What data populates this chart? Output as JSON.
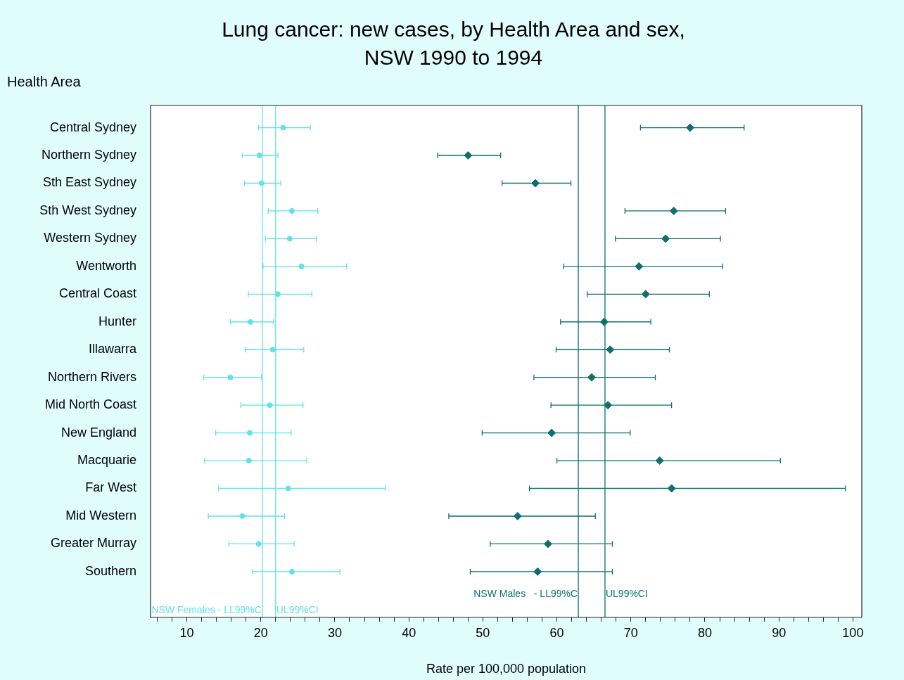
{
  "chart_data": {
    "type": "scatter",
    "orientation": "horizontal",
    "title": "Lung cancer: new cases, by Health Area and sex, NSW 1990 to 1994",
    "ylabel": "Health Area",
    "xlabel": "Rate per 100,000 population",
    "categories": [
      "Central Sydney",
      "Northern Sydney",
      "Sth East Sydney",
      "Sth West Sydney",
      "Western Sydney",
      "Wentworth",
      "Central Coast",
      "Hunter",
      "Illawarra",
      "Northern Rivers",
      "Mid North Coast",
      "New England",
      "Macquarie",
      "Far West",
      "Mid Western",
      "Greater Murray",
      "Southern"
    ],
    "xlim": [
      5.1,
      101.2
    ],
    "xticks": [
      {
        "value": 6,
        "label": null
      },
      {
        "value": 8,
        "label": null
      },
      10,
      {
        "value": 12,
        "label": null
      },
      {
        "value": 14,
        "label": null
      },
      {
        "value": 16,
        "label": null
      },
      {
        "value": 18,
        "label": null
      },
      20,
      {
        "value": 22,
        "label": null
      },
      {
        "value": 24,
        "label": null
      },
      {
        "value": 26,
        "label": null
      },
      {
        "value": 28,
        "label": null
      },
      30,
      {
        "value": 32,
        "label": null
      },
      {
        "value": 34,
        "label": null
      },
      {
        "value": 36,
        "label": null
      },
      {
        "value": 38,
        "label": null
      },
      40,
      {
        "value": 42,
        "label": null
      },
      {
        "value": 44,
        "label": null
      },
      {
        "value": 46,
        "label": null
      },
      {
        "value": 48,
        "label": null
      },
      50,
      {
        "value": 52,
        "label": null
      },
      {
        "value": 54,
        "label": null
      },
      {
        "value": 56,
        "label": null
      },
      {
        "value": 58,
        "label": null
      },
      60,
      {
        "value": 62,
        "label": null
      },
      {
        "value": 64,
        "label": null
      },
      {
        "value": 66,
        "label": null
      },
      {
        "value": 68,
        "label": null
      },
      70,
      {
        "value": 72,
        "label": null
      },
      {
        "value": 74,
        "label": null
      },
      {
        "value": 76,
        "label": null
      },
      {
        "value": 78,
        "label": null
      },
      80,
      {
        "value": 82,
        "label": null
      },
      {
        "value": 84,
        "label": null
      },
      {
        "value": 86,
        "label": null
      },
      {
        "value": 88,
        "label": null
      },
      90,
      {
        "value": 92,
        "label": null
      },
      {
        "value": 94,
        "label": null
      },
      {
        "value": 96,
        "label": null
      },
      {
        "value": 98,
        "label": null
      },
      100
    ],
    "series": [
      {
        "color": "#5ee3e8",
        "marker": "circle",
        "values": [
          23.0,
          19.8,
          20.1,
          24.2,
          23.9,
          25.5,
          22.3,
          18.6,
          21.6,
          15.9,
          21.2,
          18.5,
          18.4,
          23.7,
          17.5,
          19.7,
          24.2
        ],
        "errors": [
          [
            19.7,
            26.7
          ],
          [
            17.5,
            22.3
          ],
          [
            17.8,
            22.7
          ],
          [
            21.0,
            27.7
          ],
          [
            20.6,
            27.5
          ],
          [
            20.3,
            31.6
          ],
          [
            18.3,
            26.9
          ],
          [
            15.9,
            21.7
          ],
          [
            17.9,
            25.8
          ],
          [
            12.3,
            20.1
          ],
          [
            17.3,
            25.7
          ],
          [
            13.9,
            24.1
          ],
          [
            12.4,
            26.2
          ],
          [
            14.3,
            36.8
          ],
          [
            12.9,
            23.2
          ],
          [
            15.7,
            24.5
          ],
          [
            18.9,
            30.7
          ]
        ]
      },
      {
        "color": "#0f6e6e",
        "marker": "diamond",
        "values": [
          78.0,
          48.0,
          57.1,
          75.8,
          74.7,
          71.1,
          72.0,
          66.4,
          67.2,
          64.7,
          66.9,
          59.3,
          73.9,
          75.5,
          54.7,
          58.8,
          57.4
        ],
        "errors": [
          [
            71.3,
            85.3
          ],
          [
            43.9,
            52.4
          ],
          [
            52.6,
            61.9
          ],
          [
            69.2,
            82.8
          ],
          [
            67.9,
            82.1
          ],
          [
            60.9,
            82.4
          ],
          [
            64.1,
            80.6
          ],
          [
            60.5,
            72.7
          ],
          [
            59.9,
            75.2
          ],
          [
            56.9,
            73.3
          ],
          [
            59.2,
            75.5
          ],
          [
            49.9,
            69.9
          ],
          [
            60.0,
            90.2
          ],
          [
            56.3,
            99.0
          ],
          [
            45.4,
            65.2
          ],
          [
            51.0,
            67.5
          ],
          [
            48.3,
            67.5
          ]
        ]
      }
    ],
    "ref_lines": [
      {
        "axis": "x",
        "value": 20.2,
        "label": "NSW Females - LL99%C",
        "color": "#5ee3e8"
      },
      {
        "axis": "x",
        "value": 22.0,
        "label": "UL99%CI",
        "color": "#5ee3e8"
      },
      {
        "axis": "x",
        "value": 62.9,
        "label": "NSW Males   - LL99%C",
        "color": "#0f6e6e"
      },
      {
        "axis": "x",
        "value": 66.5,
        "label": "UL99%CI",
        "color": "#0f6e6e"
      }
    ]
  }
}
